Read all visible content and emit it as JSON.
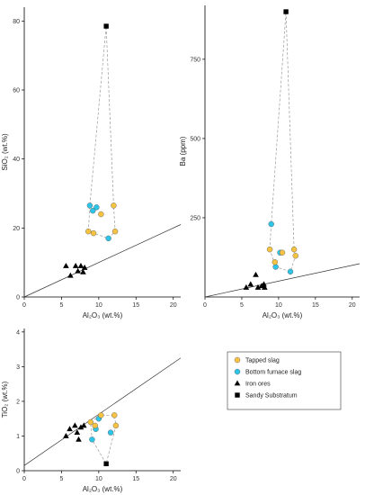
{
  "colors": {
    "tapped": "#f5c242",
    "bottom": "#2ec4e6",
    "iron": "#000000",
    "sandy": "#000000",
    "line": "#333333",
    "dash": "#9a9a9a"
  },
  "legend": {
    "items": [
      {
        "label": "Tapped slag",
        "marker": "circle",
        "color": "#f5c242"
      },
      {
        "label": "Bottom furnace slag",
        "marker": "circle",
        "color": "#2ec4e6"
      },
      {
        "label": "Iron ores",
        "marker": "triangle",
        "color": "#000000"
      },
      {
        "label": "Sandy Substratum",
        "marker": "square",
        "color": "#000000"
      }
    ]
  },
  "chart_data": [
    {
      "type": "scatter",
      "xlabel": "Al₂O₃ (wt.%)",
      "ylabel": "SiO₂ (wt.%)",
      "xlim": [
        0,
        21
      ],
      "ylim": [
        0,
        84
      ],
      "xticks": [
        "0",
        "5",
        "10",
        "15",
        "20"
      ],
      "yticks": [
        "0",
        "20",
        "40",
        "60",
        "80"
      ],
      "xtick_values": [
        0,
        5,
        10,
        15,
        20
      ],
      "ytick_values": [
        0,
        20,
        40,
        60,
        80
      ],
      "reference_line": {
        "x": [
          0,
          21
        ],
        "y": [
          0,
          21
        ]
      },
      "series": [
        {
          "name": "Tapped slag",
          "points": [
            [
              8.6,
              19
            ],
            [
              9.3,
              18.5
            ],
            [
              10.3,
              24
            ],
            [
              12,
              26.5
            ],
            [
              12.2,
              19
            ]
          ]
        },
        {
          "name": "Bottom furnace slag",
          "points": [
            [
              8.8,
              26.5
            ],
            [
              9.2,
              25
            ],
            [
              9.7,
              26
            ],
            [
              11.3,
              17
            ]
          ]
        },
        {
          "name": "Iron ores",
          "points": [
            [
              5.6,
              9
            ],
            [
              6.2,
              6.2
            ],
            [
              6.9,
              9
            ],
            [
              7.2,
              7.5
            ],
            [
              7.6,
              9
            ],
            [
              8.1,
              8.5
            ],
            [
              7.9,
              7.2
            ]
          ]
        },
        {
          "name": "Sandy Substratum",
          "points": [
            [
              11,
              78.5
            ]
          ]
        }
      ],
      "hull": [
        [
          8.6,
          19
        ],
        [
          8.8,
          26.5
        ],
        [
          11,
          78.5
        ],
        [
          12,
          26.5
        ],
        [
          12.2,
          19
        ],
        [
          11.3,
          17
        ],
        [
          9.3,
          18.5
        ]
      ]
    },
    {
      "type": "scatter",
      "xlabel": "Al₂O₃ (wt.%)",
      "ylabel": "Ba (ppm)",
      "xlim": [
        0,
        21
      ],
      "ylim": [
        0,
        920
      ],
      "xticks": [
        "0",
        "5",
        "10",
        "15",
        "20"
      ],
      "yticks": [
        "250",
        "500",
        "750"
      ],
      "xtick_values": [
        0,
        5,
        10,
        15,
        20
      ],
      "ytick_values": [
        250,
        500,
        750
      ],
      "reference_line": {
        "x": [
          0,
          21
        ],
        "y": [
          0,
          105
        ]
      },
      "series": [
        {
          "name": "Tapped slag",
          "points": [
            [
              8.8,
              150
            ],
            [
              9.5,
              110
            ],
            [
              10.5,
              140
            ],
            [
              12.1,
              150
            ],
            [
              12.3,
              130
            ]
          ]
        },
        {
          "name": "Bottom furnace slag",
          "points": [
            [
              9.0,
              230
            ],
            [
              9.6,
              95
            ],
            [
              10.2,
              140
            ],
            [
              11.6,
              80
            ]
          ]
        },
        {
          "name": "Iron ores",
          "points": [
            [
              5.6,
              30
            ],
            [
              6.2,
              40
            ],
            [
              6.9,
              70
            ],
            [
              7.2,
              30
            ],
            [
              7.7,
              35
            ],
            [
              8.0,
              40
            ],
            [
              8.1,
              30
            ]
          ]
        },
        {
          "name": "Sandy Substratum",
          "points": [
            [
              11,
              900
            ]
          ]
        }
      ],
      "hull": [
        [
          8.8,
          150
        ],
        [
          9.0,
          230
        ],
        [
          11,
          900
        ],
        [
          12.1,
          150
        ],
        [
          12.3,
          130
        ],
        [
          11.6,
          80
        ],
        [
          9.6,
          95
        ]
      ]
    },
    {
      "type": "scatter",
      "xlabel": "Al₂O₃ (wt.%)",
      "ylabel": "TiO₂ (wt.%)",
      "xlim": [
        0,
        21
      ],
      "ylim": [
        0,
        4.1
      ],
      "xticks": [
        "0",
        "5",
        "10",
        "15",
        "20"
      ],
      "yticks": [
        "0",
        "1",
        "2",
        "3",
        "4"
      ],
      "xtick_values": [
        0,
        5,
        10,
        15,
        20
      ],
      "ytick_values": [
        0,
        1,
        2,
        3,
        4
      ],
      "reference_line": {
        "x": [
          0,
          21
        ],
        "y": [
          0.15,
          3.25
        ]
      },
      "series": [
        {
          "name": "Tapped slag",
          "points": [
            [
              8.9,
              1.4
            ],
            [
              9.5,
              1.3
            ],
            [
              10.3,
              1.6
            ],
            [
              12.1,
              1.6
            ],
            [
              12.3,
              1.3
            ]
          ]
        },
        {
          "name": "Bottom furnace slag",
          "points": [
            [
              9.1,
              0.9
            ],
            [
              9.6,
              1.2
            ],
            [
              10.0,
              1.5
            ],
            [
              11.6,
              1.1
            ]
          ]
        },
        {
          "name": "Iron ores",
          "points": [
            [
              5.6,
              1.0
            ],
            [
              6.1,
              1.2
            ],
            [
              6.8,
              1.3
            ],
            [
              7.1,
              1.1
            ],
            [
              7.6,
              1.25
            ],
            [
              8.0,
              1.3
            ],
            [
              7.3,
              0.9
            ]
          ]
        },
        {
          "name": "Sandy Substratum",
          "points": [
            [
              11,
              0.2
            ]
          ]
        }
      ],
      "hull": [
        [
          8.9,
          1.4
        ],
        [
          10.3,
          1.6
        ],
        [
          12.1,
          1.6
        ],
        [
          12.3,
          1.3
        ],
        [
          11,
          0.2
        ],
        [
          9.1,
          0.9
        ]
      ]
    }
  ]
}
